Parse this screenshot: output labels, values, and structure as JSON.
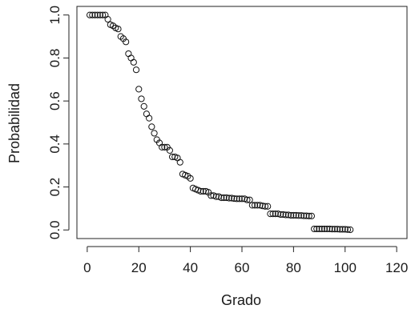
{
  "chart_data": {
    "type": "scatter",
    "title": "",
    "xlabel": "Grado",
    "ylabel": "Probabilidad",
    "xlim": [
      -4,
      124
    ],
    "ylim": [
      -0.04,
      1.04
    ],
    "xticks": [
      0,
      20,
      40,
      60,
      80,
      100,
      120
    ],
    "yticks": [
      0.0,
      0.2,
      0.4,
      0.6,
      0.8,
      1.0
    ],
    "xtick_labels": [
      "0",
      "20",
      "40",
      "60",
      "80",
      "100",
      "120"
    ],
    "ytick_labels": [
      "0.0",
      "0.2",
      "0.4",
      "0.6",
      "0.8",
      "1.0"
    ],
    "grid": false,
    "marker": "open-circle",
    "colors": {
      "marker": "#111111",
      "axis": "#222222",
      "background": "#ffffff"
    },
    "points": [
      [
        1,
        1.0
      ],
      [
        2,
        1.0
      ],
      [
        3,
        1.0
      ],
      [
        4,
        1.0
      ],
      [
        5,
        1.0
      ],
      [
        6,
        1.0
      ],
      [
        7,
        1.0
      ],
      [
        8,
        0.98
      ],
      [
        9,
        0.955
      ],
      [
        10,
        0.95
      ],
      [
        11,
        0.94
      ],
      [
        12,
        0.935
      ],
      [
        13,
        0.9
      ],
      [
        14,
        0.89
      ],
      [
        15,
        0.875
      ],
      [
        16,
        0.82
      ],
      [
        17,
        0.8
      ],
      [
        18,
        0.78
      ],
      [
        19,
        0.745
      ],
      [
        20,
        0.655
      ],
      [
        21,
        0.61
      ],
      [
        22,
        0.575
      ],
      [
        23,
        0.54
      ],
      [
        24,
        0.52
      ],
      [
        25,
        0.48
      ],
      [
        26,
        0.45
      ],
      [
        27,
        0.42
      ],
      [
        28,
        0.405
      ],
      [
        29,
        0.385
      ],
      [
        30,
        0.385
      ],
      [
        31,
        0.385
      ],
      [
        32,
        0.37
      ],
      [
        33,
        0.34
      ],
      [
        34,
        0.34
      ],
      [
        35,
        0.335
      ],
      [
        36,
        0.315
      ],
      [
        37,
        0.26
      ],
      [
        38,
        0.255
      ],
      [
        39,
        0.25
      ],
      [
        40,
        0.24
      ],
      [
        41,
        0.195
      ],
      [
        42,
        0.19
      ],
      [
        43,
        0.185
      ],
      [
        44,
        0.18
      ],
      [
        45,
        0.18
      ],
      [
        46,
        0.18
      ],
      [
        47,
        0.175
      ],
      [
        48,
        0.16
      ],
      [
        49,
        0.16
      ],
      [
        50,
        0.155
      ],
      [
        51,
        0.155
      ],
      [
        52,
        0.15
      ],
      [
        53,
        0.15
      ],
      [
        54,
        0.15
      ],
      [
        55,
        0.148
      ],
      [
        56,
        0.148
      ],
      [
        57,
        0.146
      ],
      [
        58,
        0.145
      ],
      [
        59,
        0.145
      ],
      [
        60,
        0.145
      ],
      [
        61,
        0.145
      ],
      [
        62,
        0.14
      ],
      [
        63,
        0.14
      ],
      [
        64,
        0.115
      ],
      [
        65,
        0.115
      ],
      [
        66,
        0.115
      ],
      [
        67,
        0.115
      ],
      [
        68,
        0.112
      ],
      [
        69,
        0.11
      ],
      [
        70,
        0.11
      ],
      [
        71,
        0.075
      ],
      [
        72,
        0.075
      ],
      [
        73,
        0.075
      ],
      [
        74,
        0.075
      ],
      [
        75,
        0.072
      ],
      [
        76,
        0.072
      ],
      [
        77,
        0.07
      ],
      [
        78,
        0.07
      ],
      [
        79,
        0.068
      ],
      [
        80,
        0.068
      ],
      [
        81,
        0.068
      ],
      [
        82,
        0.067
      ],
      [
        83,
        0.067
      ],
      [
        84,
        0.066
      ],
      [
        85,
        0.066
      ],
      [
        86,
        0.065
      ],
      [
        87,
        0.065
      ],
      [
        88,
        0.005
      ],
      [
        89,
        0.005
      ],
      [
        90,
        0.005
      ],
      [
        91,
        0.005
      ],
      [
        92,
        0.005
      ],
      [
        93,
        0.005
      ],
      [
        94,
        0.005
      ],
      [
        95,
        0.004
      ],
      [
        96,
        0.004
      ],
      [
        97,
        0.004
      ],
      [
        98,
        0.003
      ],
      [
        99,
        0.003
      ],
      [
        100,
        0.003
      ],
      [
        101,
        0.002
      ],
      [
        102,
        0.001
      ]
    ]
  }
}
